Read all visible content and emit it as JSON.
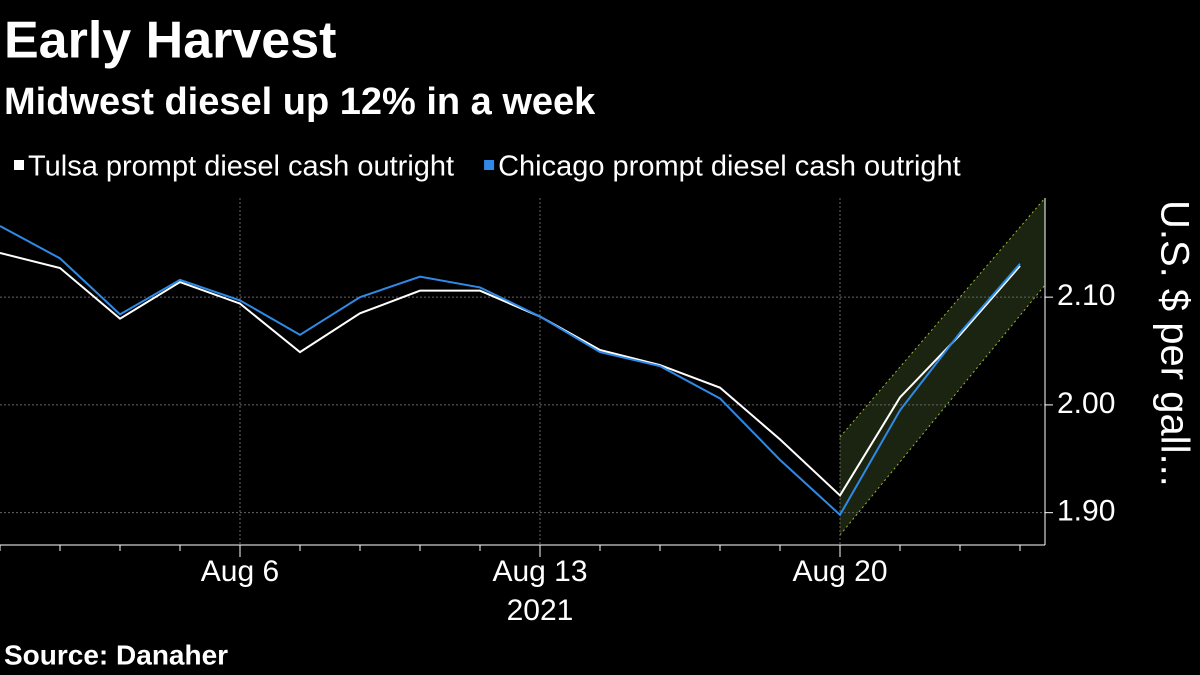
{
  "chart_data": {
    "type": "line",
    "title": "Early Harvest",
    "subtitle": "Midwest diesel up 12% in a week",
    "source": "Source: Danaher",
    "year_label": "2021",
    "y_axis_label": "U.S. $ per gall...",
    "categories": [
      null,
      null,
      null,
      null,
      "Aug 6",
      null,
      null,
      null,
      null,
      "Aug 13",
      null,
      null,
      null,
      null,
      "Aug 20",
      null,
      null,
      null
    ],
    "series": [
      {
        "name": "Tulsa prompt diesel cash outright",
        "color": "#ffffff",
        "values": [
          2.141,
          2.127,
          2.08,
          2.114,
          2.094,
          2.049,
          2.085,
          2.106,
          2.106,
          2.082,
          2.051,
          2.037,
          2.016,
          1.968,
          1.916,
          2.007,
          2.065,
          2.129
        ]
      },
      {
        "name": "Chicago prompt diesel cash outright",
        "color": "#2e8ae6",
        "values": [
          2.166,
          2.136,
          2.084,
          2.116,
          2.097,
          2.065,
          2.1,
          2.119,
          2.109,
          2.082,
          2.049,
          2.036,
          2.006,
          1.949,
          1.898,
          1.995,
          2.067,
          2.131
        ]
      }
    ],
    "ylim": [
      1.87,
      2.192
    ],
    "yticks": [
      {
        "value": 1.9,
        "label": "1.90"
      },
      {
        "value": 2.0,
        "label": "2.00"
      },
      {
        "value": 2.1,
        "label": "2.10"
      }
    ],
    "grid": true
  }
}
